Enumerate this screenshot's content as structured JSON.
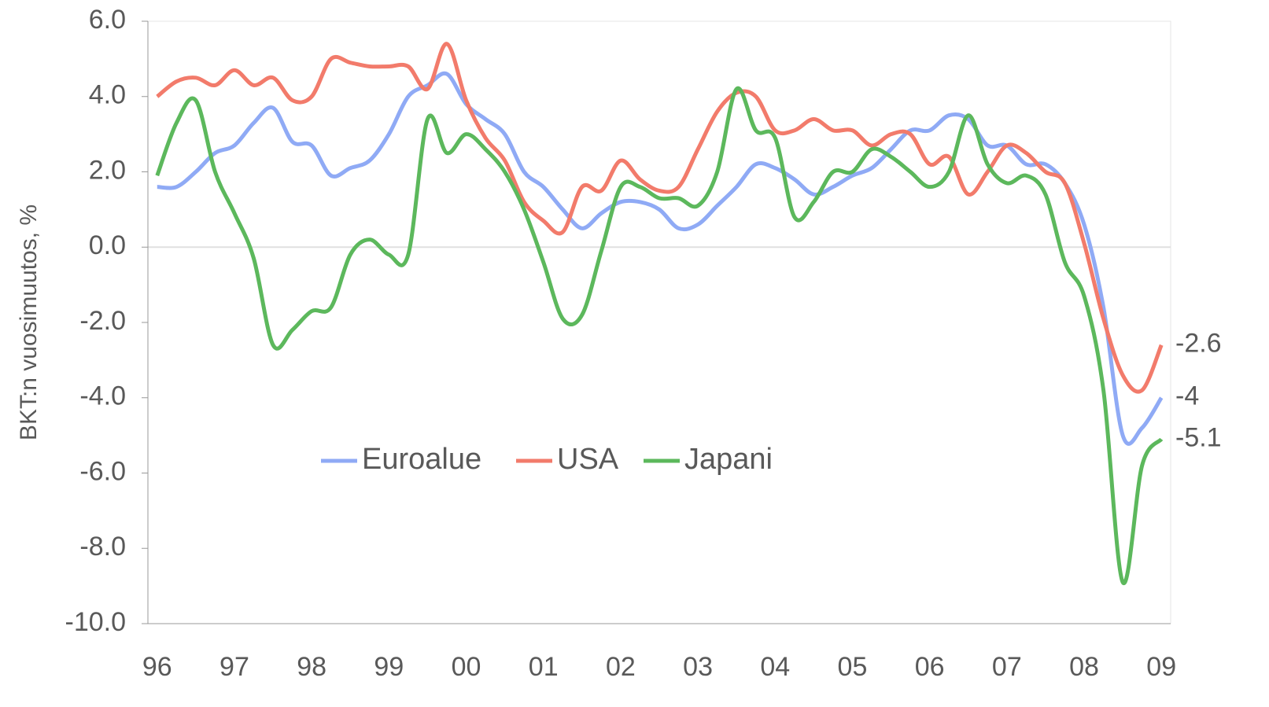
{
  "chart_data": {
    "type": "line",
    "y_label": "BKT:n vuosimuutos, %",
    "x": [
      1996,
      1996.25,
      1996.5,
      1996.75,
      1997,
      1997.25,
      1997.5,
      1997.75,
      1998,
      1998.25,
      1998.5,
      1998.75,
      1999,
      1999.25,
      1999.5,
      1999.75,
      2000,
      2000.25,
      2000.5,
      2000.75,
      2001,
      2001.25,
      2001.5,
      2001.75,
      2002,
      2002.25,
      2002.5,
      2002.75,
      2003,
      2003.25,
      2003.5,
      2003.75,
      2004,
      2004.25,
      2004.5,
      2004.75,
      2005,
      2005.25,
      2005.5,
      2005.75,
      2006,
      2006.25,
      2006.5,
      2006.75,
      2007,
      2007.25,
      2007.5,
      2007.75,
      2008,
      2008.25,
      2008.5,
      2008.75,
      2009
    ],
    "series": [
      {
        "name": "Euroalue",
        "color": "#8faaf5",
        "values": [
          1.6,
          1.6,
          2.0,
          2.5,
          2.7,
          3.3,
          3.7,
          2.8,
          2.7,
          1.9,
          2.1,
          2.3,
          3.0,
          4.0,
          4.3,
          4.6,
          3.8,
          3.4,
          3.0,
          2.0,
          1.6,
          1.0,
          0.5,
          0.9,
          1.2,
          1.2,
          1.0,
          0.5,
          0.6,
          1.1,
          1.6,
          2.2,
          2.1,
          1.8,
          1.4,
          1.6,
          1.9,
          2.1,
          2.6,
          3.1,
          3.1,
          3.5,
          3.4,
          2.7,
          2.7,
          2.2,
          2.2,
          1.7,
          0.6,
          -1.6,
          -5.0,
          -4.8,
          -4.0
        ]
      },
      {
        "name": "USA",
        "color": "#f27b6b",
        "values": [
          4.0,
          4.4,
          4.5,
          4.3,
          4.7,
          4.3,
          4.5,
          3.9,
          4.0,
          5.0,
          4.9,
          4.8,
          4.8,
          4.8,
          4.2,
          5.4,
          3.9,
          2.9,
          2.3,
          1.2,
          0.7,
          0.4,
          1.6,
          1.5,
          2.3,
          1.8,
          1.5,
          1.6,
          2.6,
          3.6,
          4.1,
          4.0,
          3.1,
          3.1,
          3.4,
          3.1,
          3.1,
          2.7,
          3.0,
          3.0,
          2.2,
          2.4,
          1.4,
          2.0,
          2.7,
          2.5,
          2.0,
          1.7,
          0.1,
          -1.9,
          -3.4,
          -3.8,
          -2.6
        ]
      },
      {
        "name": "Japani",
        "color": "#5cb85c",
        "values": [
          1.9,
          3.3,
          3.9,
          2.0,
          0.9,
          -0.3,
          -2.6,
          -2.2,
          -1.7,
          -1.6,
          -0.2,
          0.2,
          -0.2,
          -0.2,
          3.4,
          2.5,
          3.0,
          2.6,
          2.0,
          1.0,
          -0.4,
          -1.9,
          -1.8,
          -0.1,
          1.6,
          1.6,
          1.3,
          1.3,
          1.1,
          2.0,
          4.2,
          3.1,
          2.9,
          0.8,
          1.2,
          2.0,
          2.0,
          2.6,
          2.4,
          2.0,
          1.6,
          2.0,
          3.5,
          2.2,
          1.7,
          1.9,
          1.4,
          -0.4,
          -1.3,
          -3.8,
          -8.9,
          -5.8,
          -5.1
        ]
      }
    ],
    "xlim": [
      1995.88,
      2009.12
    ],
    "xticks": [
      {
        "value": 1996,
        "label": "96"
      },
      {
        "value": 1997,
        "label": "97"
      },
      {
        "value": 1998,
        "label": "98"
      },
      {
        "value": 1999,
        "label": "99"
      },
      {
        "value": 2000,
        "label": "00"
      },
      {
        "value": 2001,
        "label": "01"
      },
      {
        "value": 2002,
        "label": "02"
      },
      {
        "value": 2003,
        "label": "03"
      },
      {
        "value": 2004,
        "label": "04"
      },
      {
        "value": 2005,
        "label": "05"
      },
      {
        "value": 2006,
        "label": "06"
      },
      {
        "value": 2007,
        "label": "07"
      },
      {
        "value": 2008,
        "label": "08"
      },
      {
        "value": 2009,
        "label": "09"
      }
    ],
    "ylim": [
      -10,
      6
    ],
    "yticks": [
      {
        "value": -10,
        "label": "-10.0"
      },
      {
        "value": -8,
        "label": "-8.0"
      },
      {
        "value": -6,
        "label": "-6.0"
      },
      {
        "value": -4,
        "label": "-4.0"
      },
      {
        "value": -2,
        "label": "-2.0"
      },
      {
        "value": 0,
        "label": "0.0"
      },
      {
        "value": 2,
        "label": "2.0"
      },
      {
        "value": 4,
        "label": "4.0"
      },
      {
        "value": 6,
        "label": "6.0"
      }
    ]
  }
}
